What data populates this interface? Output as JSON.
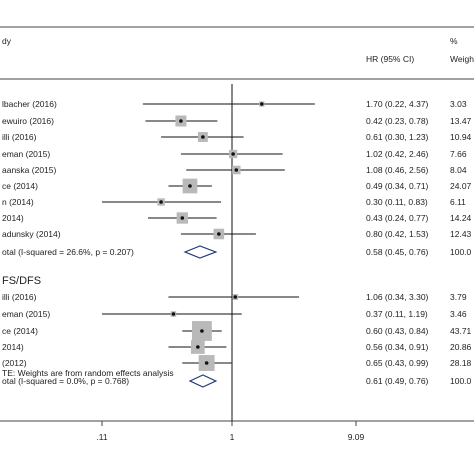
{
  "header": {
    "study_label": "dy",
    "hr_label": "HR (95% CI)",
    "pct_symbol": "%",
    "weight_label": "Weigh"
  },
  "groups": [
    {
      "title": "",
      "rows": [
        {
          "label": "lbacher (2016)",
          "hr": 1.7,
          "lo": 0.22,
          "hi": 4.37,
          "ci_text": "1.70 (0.22, 4.37)",
          "weight": "3.03"
        },
        {
          "label": "ewuiro (2016)",
          "hr": 0.42,
          "lo": 0.23,
          "hi": 0.78,
          "ci_text": "0.42 (0.23, 0.78)",
          "weight": "13.47"
        },
        {
          "label": "illi (2016)",
          "hr": 0.61,
          "lo": 0.3,
          "hi": 1.23,
          "ci_text": "0.61 (0.30, 1.23)",
          "weight": "10.94"
        },
        {
          "label": "eman (2015)",
          "hr": 1.02,
          "lo": 0.42,
          "hi": 2.46,
          "ci_text": "1.02 (0.42, 2.46)",
          "weight": "7.66"
        },
        {
          "label": "aanska (2015)",
          "hr": 1.08,
          "lo": 0.46,
          "hi": 2.56,
          "ci_text": "1.08 (0.46, 2.56)",
          "weight": "8.04"
        },
        {
          "label": "ce (2014)",
          "hr": 0.49,
          "lo": 0.34,
          "hi": 0.71,
          "ci_text": "0.49 (0.34, 0.71)",
          "weight": "24.07"
        },
        {
          "label": "n (2014)",
          "hr": 0.3,
          "lo": 0.11,
          "hi": 0.83,
          "ci_text": "0.30 (0.11, 0.83)",
          "weight": "6.11"
        },
        {
          "label": "2014)",
          "hr": 0.43,
          "lo": 0.24,
          "hi": 0.77,
          "ci_text": "0.43 (0.24, 0.77)",
          "weight": "14.24"
        },
        {
          "label": "adunsky (2014)",
          "hr": 0.8,
          "lo": 0.42,
          "hi": 1.53,
          "ci_text": "0.80 (0.42, 1.53)",
          "weight": "12.43"
        }
      ],
      "summary": {
        "label": "otal  (I-squared = 26.6%, p = 0.207)",
        "hr": 0.58,
        "lo": 0.45,
        "hi": 0.76,
        "ci_text": "0.58 (0.45, 0.76)",
        "weight": "100.0"
      }
    },
    {
      "title": "FS/DFS",
      "rows": [
        {
          "label": "illi (2016)",
          "hr": 1.06,
          "lo": 0.34,
          "hi": 3.3,
          "ci_text": "1.06 (0.34, 3.30)",
          "weight": "3.79"
        },
        {
          "label": "eman (2015)",
          "hr": 0.37,
          "lo": 0.11,
          "hi": 1.19,
          "ci_text": "0.37 (0.11, 1.19)",
          "weight": "3.46"
        },
        {
          "label": "ce (2014)",
          "hr": 0.6,
          "lo": 0.43,
          "hi": 0.84,
          "ci_text": "0.60 (0.43, 0.84)",
          "weight": "43.71"
        },
        {
          "label": "2014)",
          "hr": 0.56,
          "lo": 0.34,
          "hi": 0.91,
          "ci_text": "0.56 (0.34, 0.91)",
          "weight": "20.86"
        },
        {
          "label": "(2012)",
          "hr": 0.65,
          "lo": 0.43,
          "hi": 0.99,
          "ci_text": "0.65 (0.43, 0.99)",
          "weight": "28.18"
        }
      ],
      "summary": {
        "label": "otal  (I-squared = 0.0%, p = 0.768)",
        "hr": 0.61,
        "lo": 0.49,
        "hi": 0.76,
        "ci_text": "0.61 (0.49, 0.76)",
        "weight": "100.0"
      }
    }
  ],
  "note": "TE: Weights are from random effects analysis",
  "axis": {
    "scale": "log",
    "range": [
      0.11,
      9.09
    ],
    "ticks": [
      {
        "value": 0.11,
        "label": ".11"
      },
      {
        "value": 1,
        "label": "1"
      },
      {
        "value": 9.09,
        "label": "9.09"
      }
    ],
    "null_value": 1
  },
  "colors": {
    "line": "#111111",
    "box": "#b9b9b9",
    "diamond": "#1f3b7a",
    "rule": "#444444"
  }
}
